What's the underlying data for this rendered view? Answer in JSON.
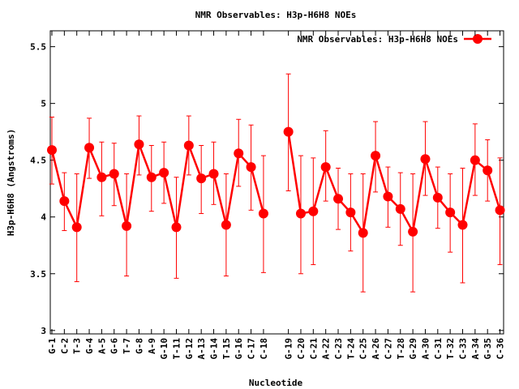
{
  "chart_data": {
    "type": "line",
    "title": "NMR Observables: H3p-H6H8 NOEs",
    "xlabel": "Nucleotide",
    "ylabel": "H3p-H6H8 (Angstroms)",
    "legend": {
      "label": "NMR Observables: H3p-H6H8 NOEs",
      "placement": "top-right"
    },
    "color": "#ff0000",
    "ylim": [
      2.97,
      5.64
    ],
    "xlim": [
      0.87,
      37.29
    ],
    "yticks": [
      "3",
      "3.5",
      "4",
      "4.5",
      "5",
      "5.5"
    ],
    "ytick_values": [
      3,
      3.5,
      4,
      4.5,
      5,
      5.5
    ],
    "categories": [
      "G-1",
      "C-2",
      "T-3",
      "G-4",
      "A-5",
      "G-6",
      "T-7",
      "G-8",
      "A-9",
      "G-10",
      "T-11",
      "G-12",
      "A-13",
      "G-14",
      "T-15",
      "G-16",
      "C-17",
      "C-18",
      "G-19",
      "C-20",
      "C-21",
      "A-22",
      "C-23",
      "T-24",
      "C-25",
      "A-26",
      "C-27",
      "T-28",
      "G-29",
      "A-30",
      "C-31",
      "T-32",
      "C-33",
      "A-34",
      "G-35",
      "C-36"
    ],
    "x": [
      1,
      2,
      3,
      4,
      5,
      6,
      7,
      8,
      9,
      10,
      11,
      12,
      13,
      14,
      15,
      16,
      17,
      18,
      20,
      21,
      22,
      23,
      24,
      25,
      26,
      27,
      28,
      29,
      30,
      31,
      32,
      33,
      34,
      35,
      36,
      37
    ],
    "values": [
      4.59,
      4.14,
      3.91,
      4.61,
      4.35,
      4.38,
      3.92,
      4.64,
      4.35,
      4.39,
      3.91,
      4.63,
      4.34,
      4.38,
      3.93,
      4.56,
      4.44,
      4.03,
      4.75,
      4.03,
      4.05,
      4.44,
      4.16,
      4.04,
      3.86,
      4.54,
      4.18,
      4.07,
      3.87,
      4.51,
      4.17,
      4.04,
      3.93,
      4.5,
      4.41,
      4.06
    ],
    "err_high": [
      4.88,
      4.39,
      4.38,
      4.87,
      4.66,
      4.65,
      4.38,
      4.89,
      4.63,
      4.66,
      4.35,
      4.89,
      4.63,
      4.66,
      4.38,
      4.86,
      4.81,
      4.54,
      5.26,
      4.54,
      4.52,
      4.76,
      4.43,
      4.38,
      4.38,
      4.84,
      4.44,
      4.39,
      4.38,
      4.84,
      4.44,
      4.38,
      4.43,
      4.82,
      4.68,
      4.52
    ],
    "err_low": [
      4.29,
      3.88,
      3.43,
      4.34,
      4.01,
      4.1,
      3.48,
      4.37,
      4.05,
      4.12,
      3.46,
      4.37,
      4.03,
      4.11,
      3.48,
      4.27,
      4.06,
      3.51,
      4.23,
      3.5,
      3.58,
      4.14,
      3.89,
      3.7,
      3.34,
      4.22,
      3.91,
      3.75,
      3.34,
      4.19,
      3.9,
      3.69,
      3.42,
      4.19,
      4.14,
      3.58
    ]
  }
}
